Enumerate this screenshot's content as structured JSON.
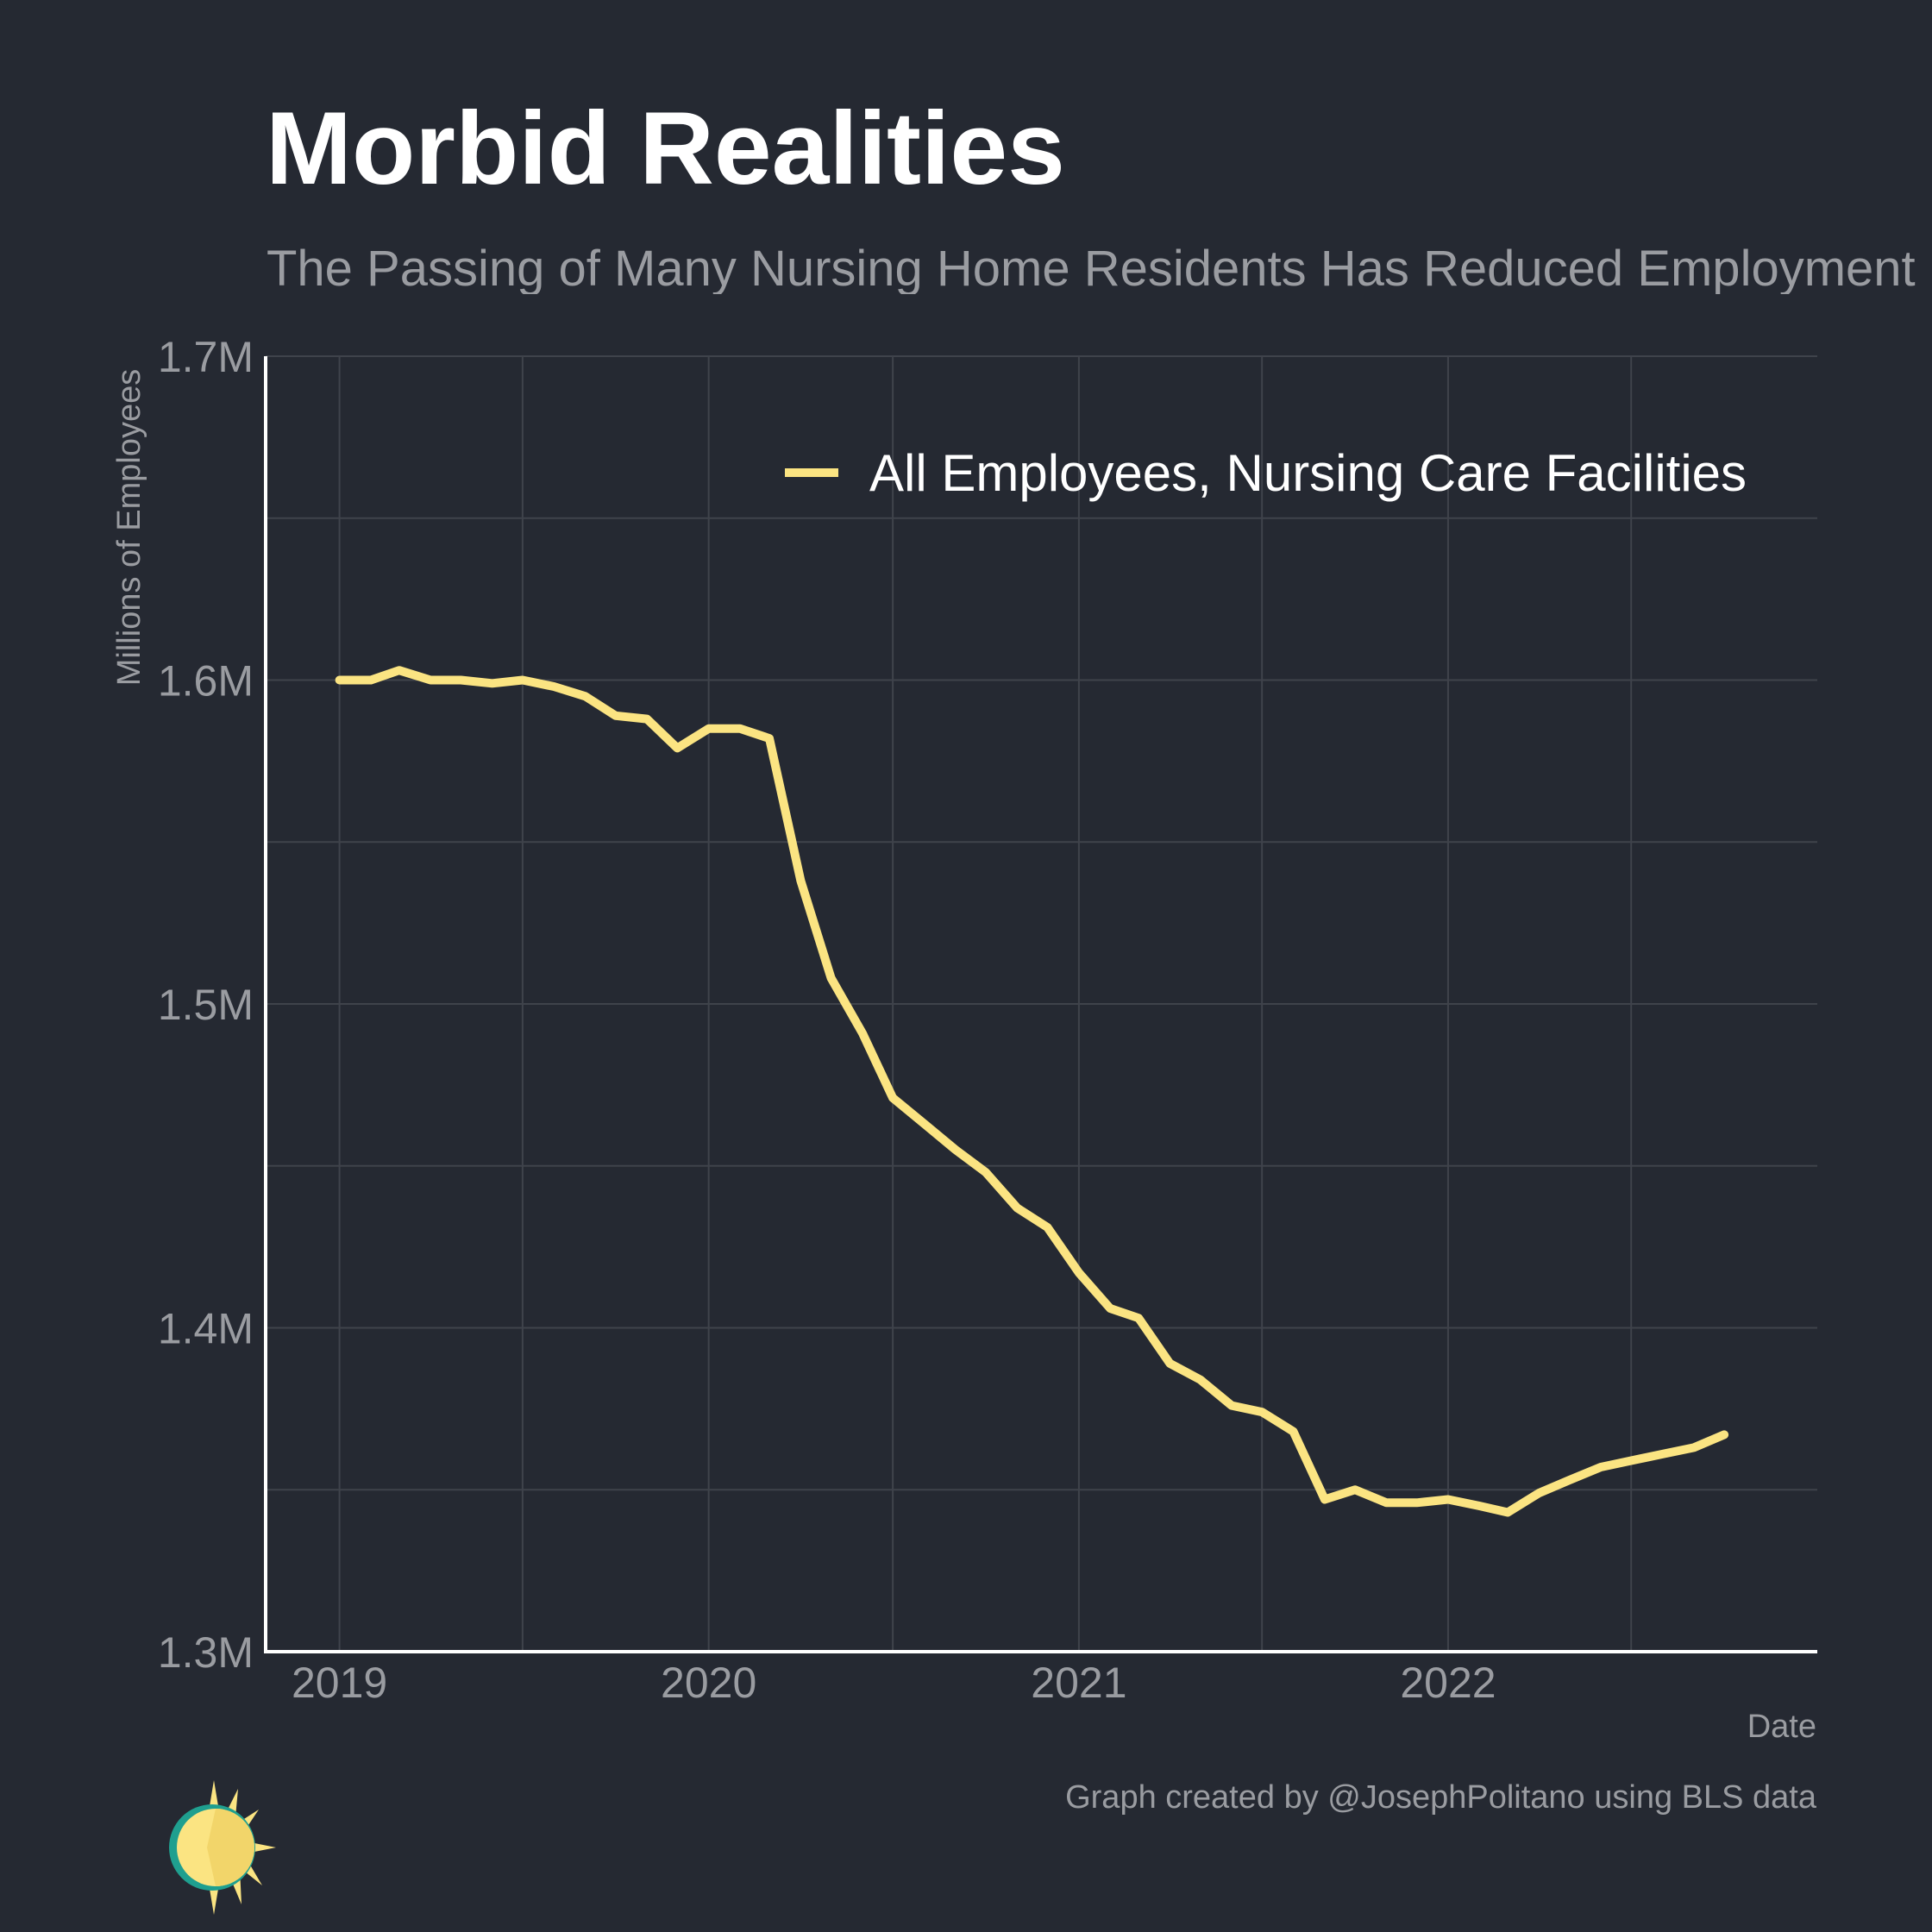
{
  "header": {
    "title": "Morbid Realities",
    "subtitle": "The Passing of Many Nursing Home Residents Has Reduced Employment in the Industry"
  },
  "footer": {
    "x_axis_title": "Date",
    "credit": "Graph created by @JosephPolitano using BLS data"
  },
  "logo": {
    "icon": "sun-logo-icon"
  },
  "colors": {
    "background": "#252932",
    "line": "#fbe482",
    "grid": "#3f434b",
    "axis": "#ffffff",
    "muted_text": "#9a9ca1"
  },
  "chart_data": {
    "type": "line",
    "xlabel": "Date",
    "ylabel": "Millions of Employees",
    "xlim": [
      "2018-10-20",
      "2023-01-01"
    ],
    "ylim": [
      1.3,
      1.7
    ],
    "x_ticks": [
      "2019",
      "2020",
      "2021",
      "2022"
    ],
    "y_ticks": [
      "1.3M",
      "1.4M",
      "1.5M",
      "1.6M",
      "1.7M"
    ],
    "y_tick_values": [
      1.3,
      1.4,
      1.5,
      1.6,
      1.7
    ],
    "grid": true,
    "legend": {
      "position": "top-right"
    },
    "series": [
      {
        "name": "All Employees, Nursing Care Facilities",
        "x": [
          "2019-01",
          "2019-02",
          "2019-03",
          "2019-04",
          "2019-05",
          "2019-06",
          "2019-07",
          "2019-08",
          "2019-09",
          "2019-10",
          "2019-11",
          "2019-12",
          "2020-01",
          "2020-02",
          "2020-03",
          "2020-04",
          "2020-05",
          "2020-06",
          "2020-07",
          "2020-08",
          "2020-09",
          "2020-10",
          "2020-11",
          "2020-12",
          "2021-01",
          "2021-02",
          "2021-03",
          "2021-04",
          "2021-05",
          "2021-06",
          "2021-07",
          "2021-08",
          "2021-09",
          "2021-10",
          "2021-11",
          "2021-12",
          "2022-01",
          "2022-02",
          "2022-03",
          "2022-04",
          "2022-05",
          "2022-06",
          "2022-07",
          "2022-08",
          "2022-09",
          "2022-10"
        ],
        "values": [
          1.6,
          1.6,
          1.603,
          1.6,
          1.6,
          1.599,
          1.6,
          1.598,
          1.595,
          1.589,
          1.588,
          1.579,
          1.585,
          1.585,
          1.582,
          1.538,
          1.508,
          1.491,
          1.471,
          1.463,
          1.455,
          1.448,
          1.437,
          1.431,
          1.417,
          1.406,
          1.403,
          1.389,
          1.384,
          1.376,
          1.374,
          1.368,
          1.347,
          1.35,
          1.346,
          1.346,
          1.347,
          1.345,
          1.343,
          1.349,
          1.353,
          1.357,
          1.359,
          1.361,
          1.363,
          1.367
        ]
      }
    ]
  }
}
